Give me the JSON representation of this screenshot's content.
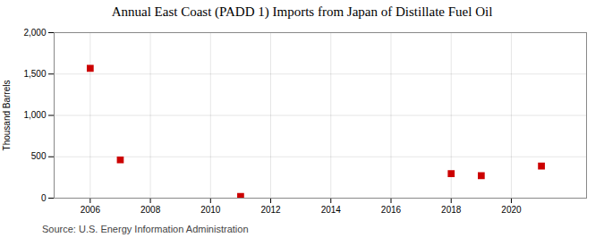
{
  "chart_data": {
    "type": "scatter",
    "title": "Annual East Coast (PADD 1) Imports from Japan of Distillate Fuel Oil",
    "ylabel": "Thousand Barrels",
    "annotations": [
      "Source: U.S. Energy Information Administration"
    ],
    "x": [
      2006,
      2007,
      2011,
      2018,
      2019,
      2021
    ],
    "values": [
      1570,
      462,
      20,
      296,
      271,
      388
    ],
    "color": "#cc0000",
    "marker": "square",
    "xlim": [
      2004.8,
      2022.5
    ],
    "xticks": [
      2006,
      2008,
      2010,
      2012,
      2014,
      2016,
      2018,
      2020
    ],
    "ylim": [
      0,
      2000
    ],
    "yticks": [
      0,
      500,
      {
        "value": 1000,
        "label": "1,000"
      },
      {
        "value": 1500,
        "label": "1,500"
      },
      {
        "value": 2000,
        "label": "2,000"
      }
    ],
    "grid": true
  }
}
